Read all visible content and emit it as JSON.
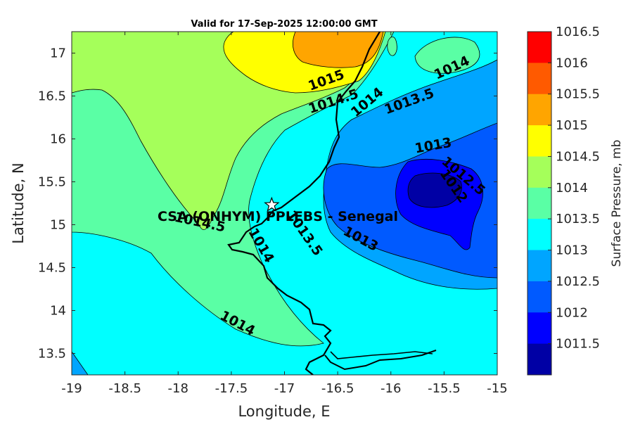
{
  "title": "Valid for 17-Sep-2025 12:00:00 GMT",
  "xlabel": "Longitude, E",
  "ylabel": "Latitude, N",
  "station_label": "CSA (ONHYM) PPLEBS  - Senegal",
  "x_ticks": [
    "-19",
    "-18.5",
    "-18",
    "-17.5",
    "-17",
    "-16.5",
    "-16",
    "-15.5",
    "-15"
  ],
  "y_ticks": [
    "13.5",
    "14",
    "14.5",
    "15",
    "15.5",
    "16",
    "16.5",
    "17"
  ],
  "colorbar": {
    "title": "Surface Pressure, mb",
    "labels": [
      "1016.5",
      "1016",
      "1015.5",
      "1015",
      "1014.5",
      "1014",
      "1013.5",
      "1013",
      "1012.5",
      "1012",
      "1011.5"
    ],
    "colors": [
      "#ff0000",
      "#ff5a00",
      "#ffa500",
      "#ffff00",
      "#a5ff5a",
      "#5affa5",
      "#00ffff",
      "#00a5ff",
      "#005aff",
      "#0000ff",
      "#0000a5"
    ]
  },
  "contour_labels": [
    {
      "text": "1015"
    },
    {
      "text": "1014.5"
    },
    {
      "text": "1014"
    },
    {
      "text": "1013.5"
    },
    {
      "text": "1014"
    },
    {
      "text": "1013"
    },
    {
      "text": "1012.5"
    },
    {
      "text": "1012"
    },
    {
      "text": "1014.5"
    },
    {
      "text": "1013.5"
    },
    {
      "text": "1014"
    },
    {
      "text": "1013"
    },
    {
      "text": "1014"
    }
  ],
  "map_data": {
    "lon_range": [
      -19,
      -15
    ],
    "lat_range": [
      13.25,
      17.25
    ],
    "station": {
      "lon": -17.12,
      "lat": 15.23
    }
  }
}
